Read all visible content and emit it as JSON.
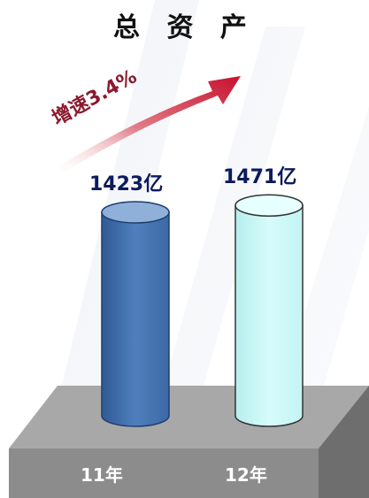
{
  "chart_data": {
    "type": "bar",
    "title": "总 资 产",
    "categories": [
      "11年",
      "12年"
    ],
    "values": [
      1423,
      1471
    ],
    "value_labels": [
      "1423亿",
      "1471亿"
    ],
    "annotation": "增速3.4%",
    "colors": [
      "#4a76b0",
      "#c9f7f7"
    ],
    "xlabel": "",
    "ylabel": ""
  }
}
